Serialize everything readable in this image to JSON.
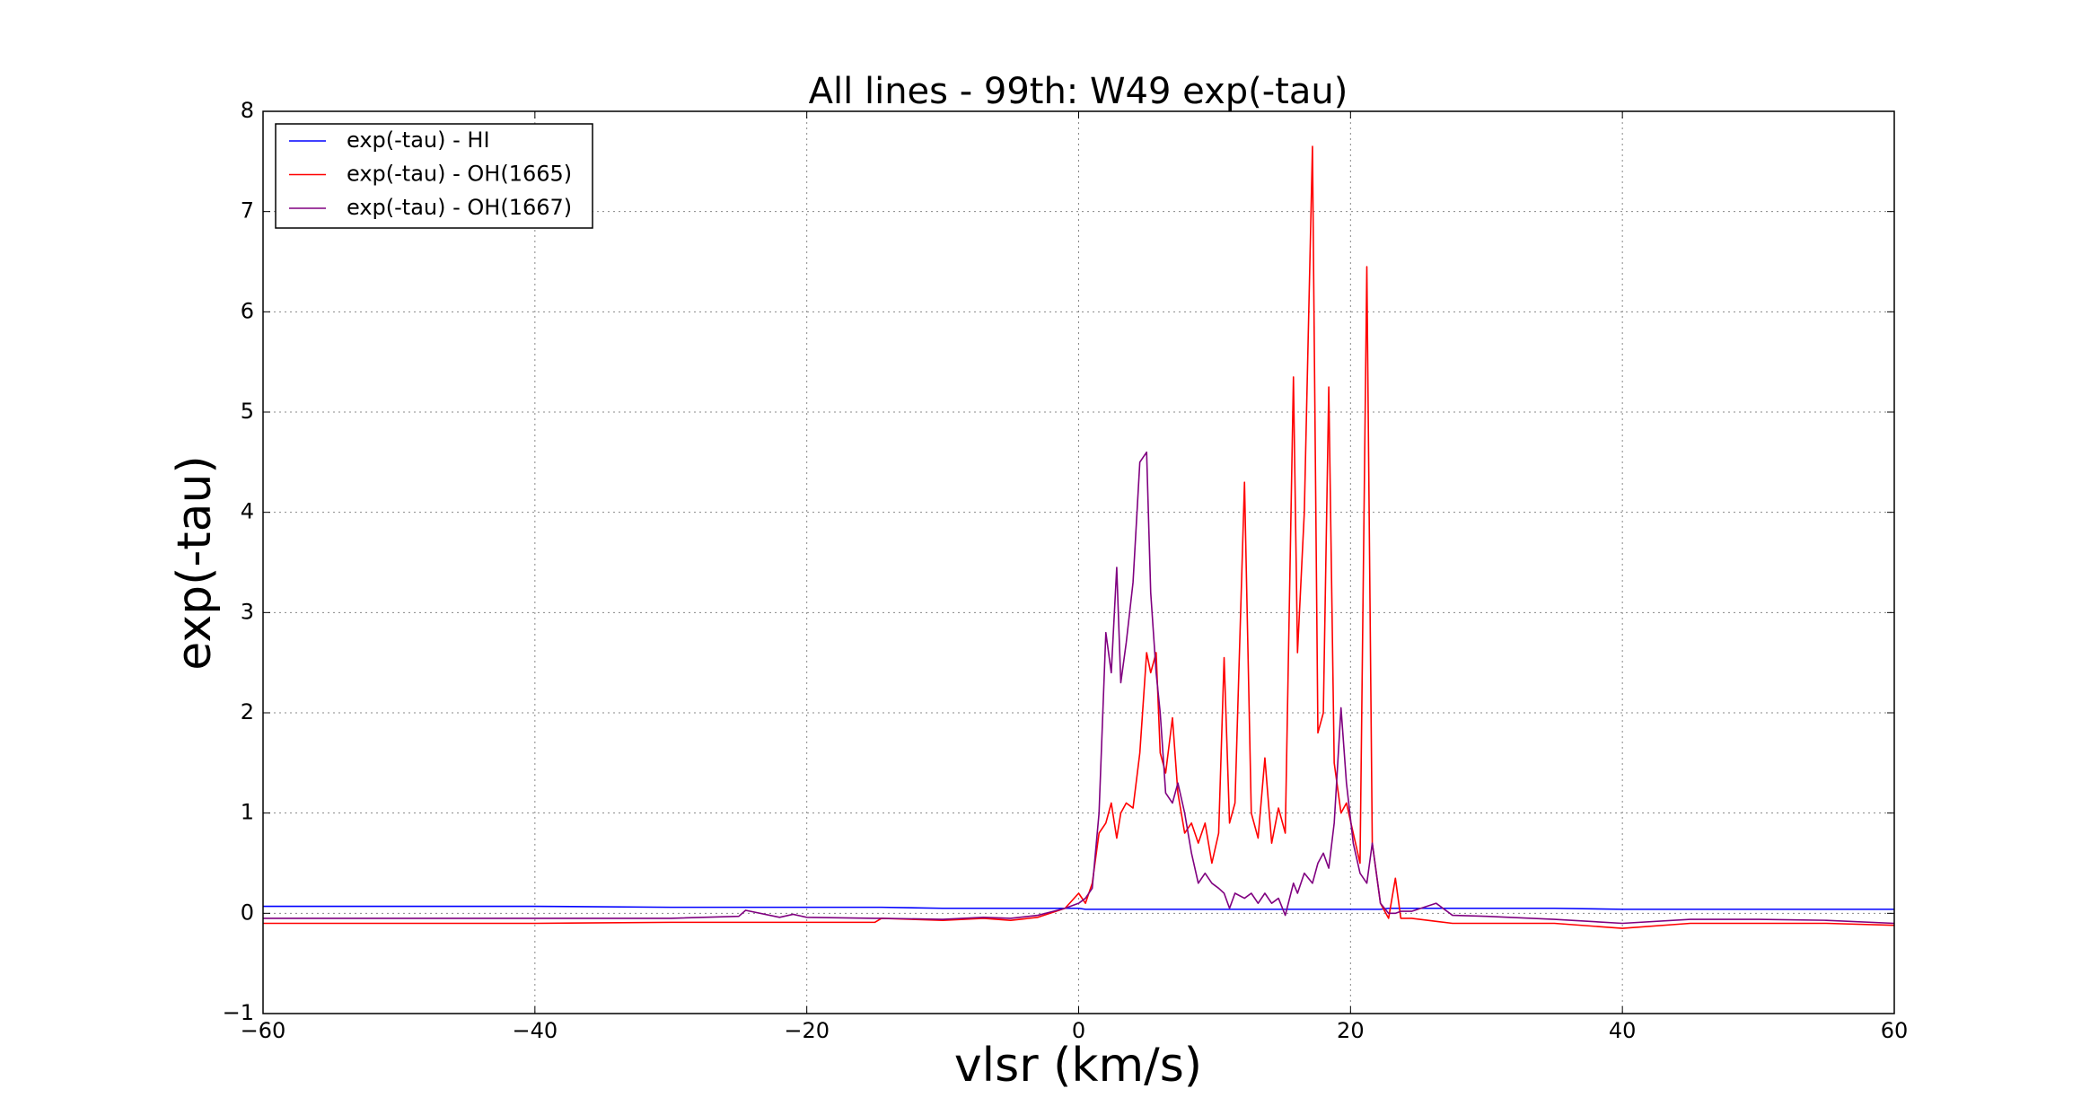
{
  "chart_data": {
    "type": "line",
    "title": "All lines - 99th: W49  exp(-tau)",
    "xlabel": "vlsr (km/s)",
    "ylabel": "exp(-tau)",
    "x": [
      -60,
      -50,
      -40,
      -30,
      -25,
      -24.5,
      -22,
      -21,
      -20,
      -15,
      -14.5,
      -10,
      -7,
      -5,
      -3,
      -1,
      0,
      0.5,
      1,
      1.5,
      2,
      2.4,
      2.8,
      3.1,
      3.5,
      4,
      4.5,
      5,
      5.3,
      5.7,
      6,
      6.4,
      6.9,
      7.3,
      7.8,
      8.3,
      8.8,
      9.3,
      9.8,
      10.3,
      10.7,
      11.1,
      11.5,
      12.2,
      12.7,
      13.2,
      13.7,
      14.2,
      14.7,
      15.2,
      15.8,
      16.1,
      16.6,
      17.2,
      17.6,
      18,
      18.4,
      18.8,
      19.3,
      19.7,
      20.2,
      20.7,
      21.2,
      21.6,
      22.2,
      22.8,
      23.3,
      23.7,
      24.5,
      26.3,
      27.5,
      30,
      35,
      40,
      45,
      50,
      55,
      60
    ],
    "series": [
      {
        "name": "exp(-tau) - HI",
        "color": "#0000ff",
        "values": [
          0.07,
          0.07,
          0.07,
          0.06,
          0.06,
          0.06,
          0.06,
          0.06,
          0.06,
          0.06,
          0.06,
          0.05,
          0.05,
          0.05,
          0.05,
          0.05,
          0.05,
          0.04,
          0.04,
          0.04,
          0.04,
          0.04,
          0.04,
          0.04,
          0.04,
          0.04,
          0.04,
          0.04,
          0.04,
          0.04,
          0.04,
          0.04,
          0.04,
          0.04,
          0.04,
          0.04,
          0.04,
          0.04,
          0.04,
          0.04,
          0.04,
          0.04,
          0.04,
          0.04,
          0.04,
          0.04,
          0.04,
          0.04,
          0.04,
          0.04,
          0.04,
          0.04,
          0.04,
          0.04,
          0.04,
          0.04,
          0.04,
          0.04,
          0.04,
          0.04,
          0.04,
          0.04,
          0.04,
          0.04,
          0.04,
          0.05,
          0.05,
          0.05,
          0.05,
          0.05,
          0.05,
          0.05,
          0.05,
          0.04,
          0.04,
          0.04,
          0.04,
          0.04
        ]
      },
      {
        "name": "exp(-tau) - OH(1665)",
        "color": "#ff0000",
        "values": [
          -0.1,
          -0.1,
          -0.1,
          -0.09,
          -0.09,
          -0.09,
          -0.09,
          -0.09,
          -0.09,
          -0.09,
          -0.05,
          -0.07,
          -0.05,
          -0.07,
          -0.04,
          0.05,
          0.2,
          0.1,
          0.3,
          0.8,
          0.9,
          1.1,
          0.75,
          1.0,
          1.1,
          1.05,
          1.6,
          2.6,
          2.4,
          2.6,
          1.6,
          1.4,
          1.95,
          1.2,
          0.8,
          0.9,
          0.7,
          0.9,
          0.5,
          0.8,
          2.55,
          0.9,
          1.1,
          4.3,
          1.0,
          0.75,
          1.55,
          0.7,
          1.05,
          0.8,
          5.35,
          2.6,
          4.0,
          7.65,
          1.8,
          2.0,
          5.25,
          1.5,
          1.0,
          1.1,
          0.8,
          0.5,
          6.45,
          0.7,
          0.1,
          -0.05,
          0.35,
          -0.05,
          -0.05,
          -0.08,
          -0.1,
          -0.1,
          -0.1,
          -0.15,
          -0.1,
          -0.1,
          -0.1,
          -0.12
        ]
      },
      {
        "name": "exp(-tau) - OH(1667)",
        "color": "#800080",
        "values": [
          -0.05,
          -0.05,
          -0.05,
          -0.05,
          -0.03,
          0.03,
          -0.04,
          -0.01,
          -0.04,
          -0.05,
          -0.05,
          -0.06,
          -0.04,
          -0.05,
          -0.02,
          0.05,
          0.1,
          0.15,
          0.25,
          1.0,
          2.8,
          2.4,
          3.45,
          2.3,
          2.7,
          3.3,
          4.5,
          4.6,
          3.2,
          2.4,
          2.0,
          1.2,
          1.1,
          1.3,
          1.0,
          0.6,
          0.3,
          0.4,
          0.3,
          0.25,
          0.2,
          0.05,
          0.2,
          0.15,
          0.2,
          0.1,
          0.2,
          0.1,
          0.15,
          -0.02,
          0.3,
          0.2,
          0.4,
          0.3,
          0.5,
          0.6,
          0.45,
          0.9,
          2.05,
          1.3,
          0.7,
          0.4,
          0.3,
          0.7,
          0.1,
          0.0,
          0.0,
          0.02,
          0.02,
          0.1,
          -0.02,
          -0.03,
          -0.06,
          -0.1,
          -0.06,
          -0.06,
          -0.07,
          -0.1
        ]
      }
    ],
    "xlim": [
      -60,
      60
    ],
    "ylim": [
      -1,
      8
    ],
    "xticks": [
      {
        "value": -60,
        "label": "−60"
      },
      {
        "value": -40,
        "label": "−40"
      },
      {
        "value": -20,
        "label": "−20"
      },
      0,
      20,
      40,
      60
    ],
    "yticks": [
      {
        "value": -1,
        "label": "−1"
      },
      0,
      1,
      2,
      3,
      4,
      5,
      6,
      7,
      8
    ],
    "grid": true,
    "legend": "upper left"
  }
}
